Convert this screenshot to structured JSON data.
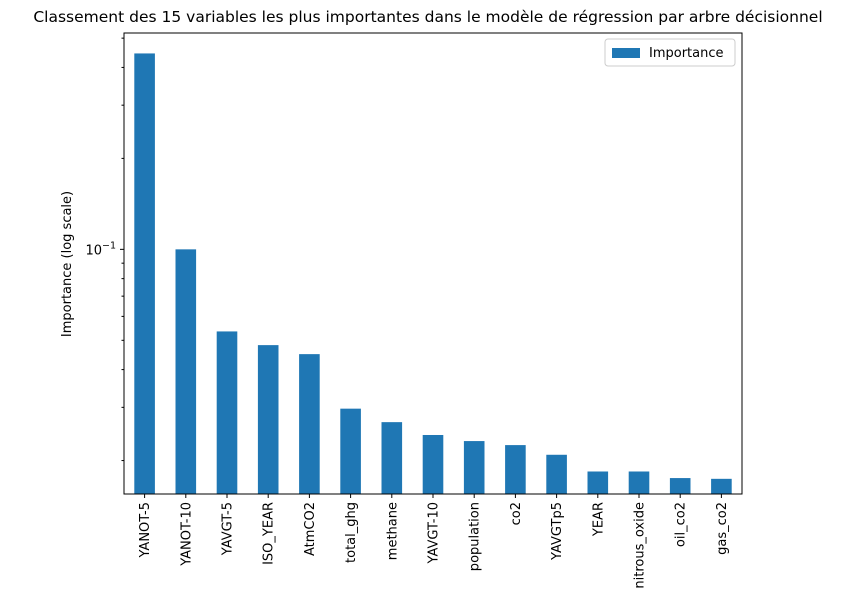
{
  "chart_data": {
    "type": "bar",
    "title": "Classement des 15 variables les plus importantes dans le modèle de régression par arbre décisionnel",
    "xlabel": "",
    "ylabel": "Importance (log scale)",
    "yscale": "log",
    "ylim": [
      0.0155,
      0.52
    ],
    "y_ticks": [
      {
        "value": 0.1,
        "label_base": "10",
        "label_exp": "−1"
      }
    ],
    "categories": [
      "YANOT-5",
      "YANOT-10",
      "YAVGT-5",
      "ISO_YEAR",
      "AtmCO2",
      "total_ghg",
      "methane",
      "YAVGT-10",
      "population",
      "co2",
      "YAVGTp5",
      "YEAR",
      "nitrous_oxide",
      "oil_co2",
      "gas_co2"
    ],
    "series": [
      {
        "name": "Importance",
        "color": "#1f77b4",
        "values": [
          0.445,
          0.1,
          0.0535,
          0.0482,
          0.045,
          0.0297,
          0.0268,
          0.0243,
          0.0232,
          0.0225,
          0.0209,
          0.0184,
          0.0184,
          0.0175,
          0.0174
        ]
      }
    ],
    "legend_position": "top-right",
    "grid": false
  }
}
